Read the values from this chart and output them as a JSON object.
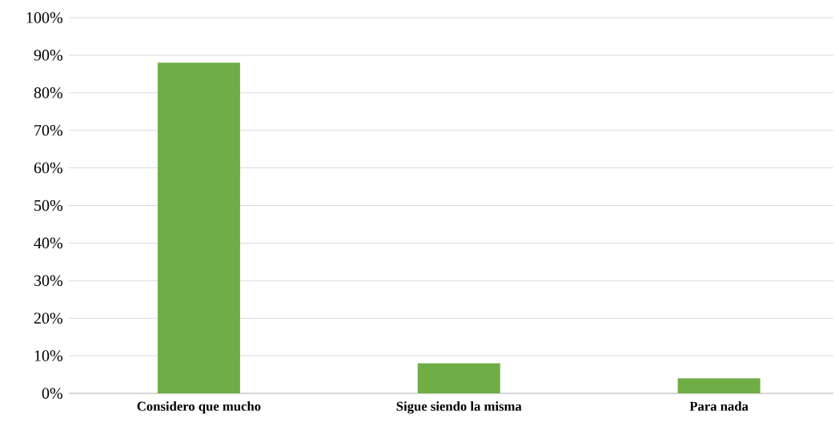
{
  "chart_data": {
    "type": "bar",
    "categories": [
      "Considero que mucho",
      "Sigue siendo la misma",
      "Para nada"
    ],
    "values": [
      88,
      8,
      4
    ],
    "color": "#70ad47",
    "ylim": [
      0,
      100
    ],
    "yticks": [
      {
        "value": 0,
        "label": "0%"
      },
      {
        "value": 10,
        "label": "10%"
      },
      {
        "value": 20,
        "label": "20%"
      },
      {
        "value": 30,
        "label": "30%"
      },
      {
        "value": 40,
        "label": "40%"
      },
      {
        "value": 50,
        "label": "50%"
      },
      {
        "value": 60,
        "label": "60%"
      },
      {
        "value": 70,
        "label": "70%"
      },
      {
        "value": 80,
        "label": "80%"
      },
      {
        "value": 90,
        "label": "90%"
      },
      {
        "value": 100,
        "label": "100%"
      }
    ],
    "grid": "y"
  }
}
